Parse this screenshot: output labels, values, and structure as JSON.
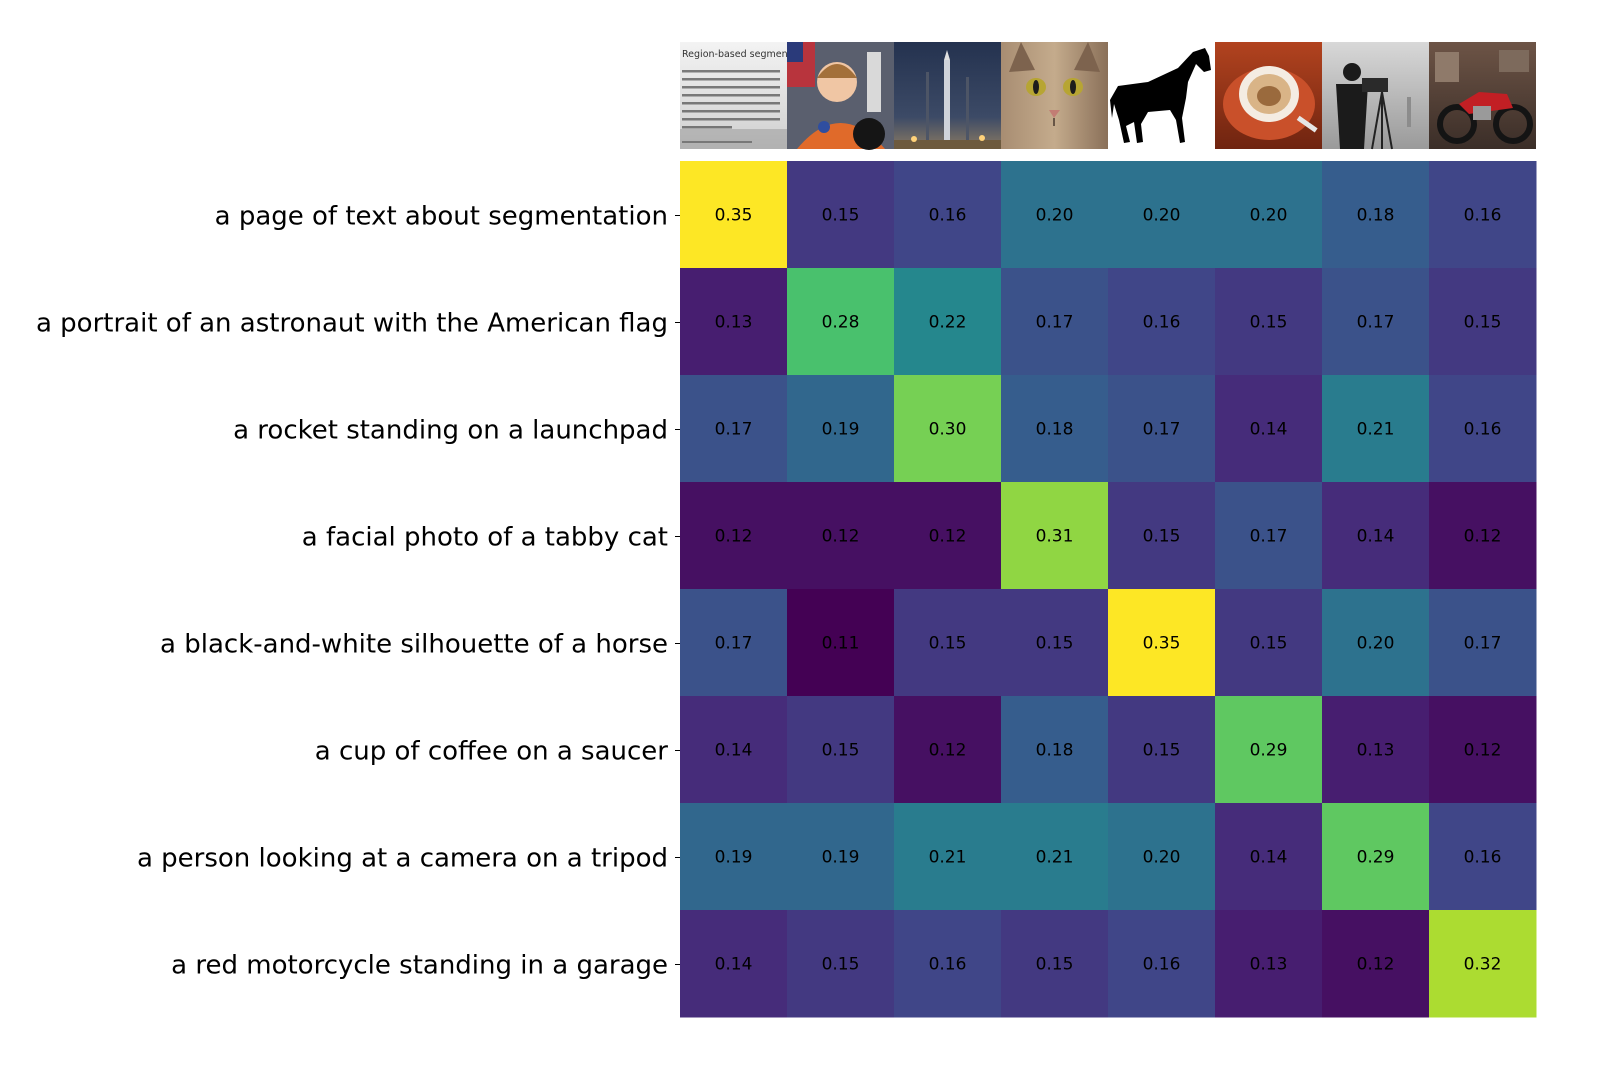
{
  "chart_data": {
    "type": "heatmap",
    "title": "",
    "xlabel": "",
    "ylabel": "",
    "colormap": "viridis",
    "value_range": [
      0.11,
      0.35
    ],
    "row_labels": [
      "a page of text about segmentation",
      "a portrait of an astronaut with the American flag",
      "a rocket standing on a launchpad",
      "a facial photo of a tabby cat",
      "a black-and-white silhouette of a horse",
      "a cup of coffee on a saucer",
      "a person looking at a camera on a tripod",
      "a red motorcycle standing in a garage"
    ],
    "column_images": [
      "text-page-image",
      "astronaut-image",
      "rocket-image",
      "cat-image",
      "horse-image",
      "coffee-image",
      "camera-image",
      "motorcycle-image"
    ],
    "values": [
      [
        0.35,
        0.15,
        0.16,
        0.2,
        0.2,
        0.2,
        0.18,
        0.16
      ],
      [
        0.13,
        0.28,
        0.22,
        0.17,
        0.16,
        0.15,
        0.17,
        0.15
      ],
      [
        0.17,
        0.19,
        0.3,
        0.18,
        0.17,
        0.14,
        0.21,
        0.16
      ],
      [
        0.12,
        0.12,
        0.12,
        0.31,
        0.15,
        0.17,
        0.14,
        0.12
      ],
      [
        0.17,
        0.11,
        0.15,
        0.15,
        0.35,
        0.15,
        0.2,
        0.17
      ],
      [
        0.14,
        0.15,
        0.12,
        0.18,
        0.15,
        0.29,
        0.13,
        0.12
      ],
      [
        0.19,
        0.19,
        0.21,
        0.21,
        0.2,
        0.14,
        0.29,
        0.16
      ],
      [
        0.14,
        0.15,
        0.16,
        0.15,
        0.16,
        0.13,
        0.12,
        0.32
      ]
    ],
    "value_labels": [
      [
        "0.35",
        "0.15",
        "0.16",
        "0.20",
        "0.20",
        "0.20",
        "0.18",
        "0.16"
      ],
      [
        "0.13",
        "0.28",
        "0.22",
        "0.17",
        "0.16",
        "0.15",
        "0.17",
        "0.15"
      ],
      [
        "0.17",
        "0.19",
        "0.30",
        "0.18",
        "0.17",
        "0.14",
        "0.21",
        "0.16"
      ],
      [
        "0.12",
        "0.12",
        "0.12",
        "0.31",
        "0.15",
        "0.17",
        "0.14",
        "0.12"
      ],
      [
        "0.17",
        "0.11",
        "0.15",
        "0.15",
        "0.35",
        "0.15",
        "0.20",
        "0.17"
      ],
      [
        "0.14",
        "0.15",
        "0.12",
        "0.18",
        "0.15",
        "0.29",
        "0.13",
        "0.12"
      ],
      [
        "0.19",
        "0.19",
        "0.21",
        "0.21",
        "0.20",
        "0.14",
        "0.29",
        "0.16"
      ],
      [
        "0.14",
        "0.15",
        "0.16",
        "0.15",
        "0.16",
        "0.13",
        "0.12",
        "0.32"
      ]
    ],
    "thumbnail_text": {
      "heading": "Region-based segmentation"
    }
  }
}
